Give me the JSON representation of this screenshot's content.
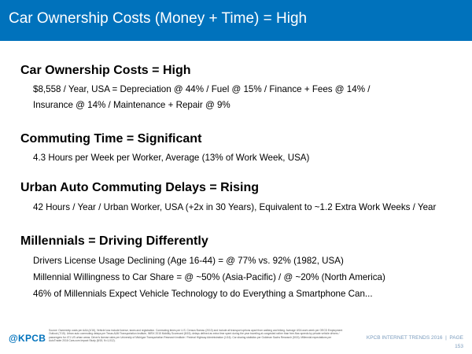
{
  "header": {
    "title": "Car Ownership Costs (Money + Time) = High"
  },
  "sections": [
    {
      "heading": "Car Ownership Costs = High",
      "lines": [
        "$8,558 / Year, USA = Depreciation @ 44% / Fuel @ 15% / Finance + Fees @ 14% /",
        "Insurance @ 14% / Maintenance + Repair @ 9%"
      ]
    },
    {
      "heading": "Commuting Time = Significant",
      "lines": [
        "4.3 Hours per Week per Worker, Average (13% of Work Week, USA)"
      ]
    },
    {
      "heading": "Urban Auto Commuting Delays = Rising",
      "lines": [
        "42 Hours / Year / Urban Worker, USA (+2x in 30 Years), Equivalent to ~1.2 Extra Work Weeks / Year"
      ]
    },
    {
      "heading": "Millennials = Driving Differently",
      "lines": [
        "Drivers License Usage Declining (Age 16-44) = @ 77% vs. 92% (1982, USA)",
        "Millennial Willingness to Car Share = @ ~50% (Asia-Pacific) / @ ~20% (North America)",
        "46% of Millennials Expect Vehicle Technology to do Everything a Smartphone Can..."
      ]
    }
  ],
  "footer": {
    "logo": "@KPCB",
    "source": "Source: Ownership costs per AAA (4/16), Vehicle loss include license, taxes and registration. Commuting times per U.S. Census Bureau (2013) and include all transport options apart from walking and biking. Average USA work week per OECD Employment Outlook (7/15). Urban auto commuting delays per Texas A&M Transportation Institute, INRIX 2015 Mobility Scorecard (8/15); delays defined as extra time spent during the year traveling at congested rather than free-flow speeds by private vehicle drivers / passengers for 471 US urban areas. Driver's license rates per University of Michigan Transportation Research Institute / Federal Highway Administration (1/16). Car sharing statistics per Goldman Sachs Research (5/15). Millennial expectations per AutoTrader 2016 Cars.com Impact Study (8/15, N=1,012).",
    "label": "KPCB INTERNET TRENDS 2016",
    "separator": "|",
    "page_label": "PAGE",
    "page_number": "153"
  },
  "colors": {
    "title_bar": "#0072bc",
    "logo": "#0072bc"
  }
}
